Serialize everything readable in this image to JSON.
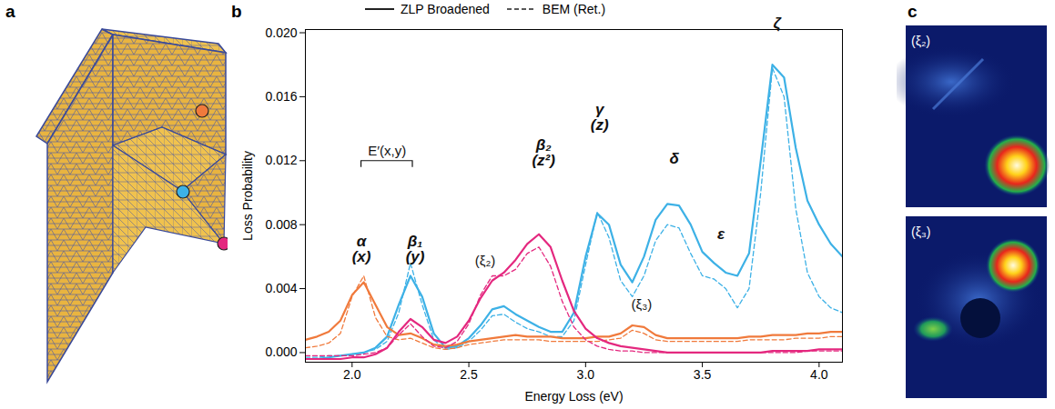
{
  "panel_labels": [
    "a",
    "b",
    "c"
  ],
  "chart_data": {
    "type": "line",
    "x_label": "Energy Loss (eV)",
    "y_label": "Loss Probability",
    "xlim": [
      1.8,
      4.1
    ],
    "ylim": [
      -0.0006,
      0.0202
    ],
    "xticks": [
      {
        "value": 2,
        "label": "2.0"
      },
      {
        "value": 2.5,
        "label": "2.5"
      },
      {
        "value": 3,
        "label": "3.0"
      },
      {
        "value": 3.5,
        "label": "3.5"
      },
      {
        "value": 4,
        "label": "4.0"
      }
    ],
    "yticks": [
      {
        "value": 0,
        "label": "0.000"
      },
      {
        "value": 0.004,
        "label": "0.004"
      },
      {
        "value": 0.008,
        "label": "0.008"
      },
      {
        "value": 0.012,
        "label": "0.012"
      },
      {
        "value": 0.016,
        "label": "0.016"
      },
      {
        "value": 0.02,
        "label": "0.020"
      }
    ],
    "grid": false,
    "legend": "top",
    "x": [
      1.8,
      1.85,
      1.9,
      1.95,
      2,
      2.05,
      2.1,
      2.15,
      2.2,
      2.25,
      2.3,
      2.35,
      2.4,
      2.45,
      2.5,
      2.55,
      2.6,
      2.65,
      2.7,
      2.75,
      2.8,
      2.85,
      2.9,
      2.95,
      3,
      3.05,
      3.1,
      3.15,
      3.2,
      3.25,
      3.3,
      3.35,
      3.4,
      3.45,
      3.5,
      3.55,
      3.6,
      3.65,
      3.7,
      3.75,
      3.8,
      3.85,
      3.9,
      3.95,
      4,
      4.05,
      4.1
    ],
    "series": [
      {
        "name": "ZLP Broadened",
        "color": "#3db1e6",
        "line_style": "solid",
        "values": [
          -0.0004,
          -0.0004,
          -0.0003,
          -0.0002,
          -0.0001,
          0,
          0.0003,
          0.001,
          0.003,
          0.0048,
          0.0035,
          0.0012,
          0.0003,
          0.0004,
          0.0009,
          0.0017,
          0.0027,
          0.0029,
          0.0024,
          0.002,
          0.0016,
          0.0013,
          0.0013,
          0.0025,
          0.006,
          0.0087,
          0.008,
          0.0055,
          0.0044,
          0.006,
          0.0083,
          0.0093,
          0.0092,
          0.008,
          0.0063,
          0.0056,
          0.005,
          0.0048,
          0.0062,
          0.012,
          0.018,
          0.0172,
          0.0128,
          0.0095,
          0.008,
          0.0068,
          0.006
        ]
      },
      {
        "name": "BEM (Ret.)",
        "color": "#3db1e6",
        "line_style": "dashed",
        "values": [
          -0.0003,
          -0.0003,
          -0.0002,
          -0.0002,
          -0.0001,
          0,
          0.0002,
          0.0007,
          0.0025,
          0.0056,
          0.003,
          0.0008,
          0.0002,
          0.0003,
          0.0007,
          0.0014,
          0.0023,
          0.0024,
          0.0019,
          0.0015,
          0.0013,
          0.001,
          0.001,
          0.002,
          0.0055,
          0.0088,
          0.0072,
          0.0045,
          0.0035,
          0.0048,
          0.007,
          0.008,
          0.0078,
          0.0062,
          0.0048,
          0.0046,
          0.004,
          0.0028,
          0.004,
          0.01,
          0.0178,
          0.016,
          0.009,
          0.005,
          0.0035,
          0.0028,
          0.0025
        ]
      },
      {
        "name": "ZLP Broadened",
        "color": "#f07a3c",
        "line_style": "solid",
        "values": [
          0.0008,
          0.001,
          0.0013,
          0.002,
          0.0036,
          0.0044,
          0.003,
          0.0016,
          0.0011,
          0.0012,
          0.0009,
          0.0005,
          0.0004,
          0.0005,
          0.0007,
          0.0008,
          0.0009,
          0.001,
          0.0011,
          0.001,
          0.001,
          0.001,
          0.0009,
          0.0009,
          0.0009,
          0.001,
          0.001,
          0.0012,
          0.0017,
          0.0016,
          0.0011,
          0.0009,
          0.0009,
          0.0009,
          0.0009,
          0.0009,
          0.0009,
          0.0009,
          0.001,
          0.001,
          0.0011,
          0.0011,
          0.0011,
          0.0012,
          0.0012,
          0.0013,
          0.0013
        ]
      },
      {
        "name": "BEM (Ret.)",
        "color": "#f07a3c",
        "line_style": "dashed",
        "values": [
          0.0003,
          0.0004,
          0.0006,
          0.0012,
          0.0035,
          0.0048,
          0.0022,
          0.001,
          0.0008,
          0.0009,
          0.0006,
          0.0003,
          0.0002,
          0.0003,
          0.0005,
          0.0006,
          0.0007,
          0.0008,
          0.0008,
          0.0008,
          0.0008,
          0.0007,
          0.0007,
          0.0007,
          0.0007,
          0.0007,
          0.0008,
          0.0009,
          0.0014,
          0.0012,
          0.0008,
          0.0007,
          0.0007,
          0.0007,
          0.0007,
          0.0007,
          0.0007,
          0.0007,
          0.0008,
          0.0008,
          0.0008,
          0.0008,
          0.0009,
          0.0009,
          0.0009,
          0.001,
          0.001
        ]
      },
      {
        "name": "ZLP Broadened",
        "color": "#e4287f",
        "line_style": "solid",
        "values": [
          -0.0004,
          -0.0004,
          -0.0004,
          -0.0004,
          -0.0003,
          -0.0003,
          -0.0001,
          0.0003,
          0.0013,
          0.0021,
          0.0016,
          0.0008,
          0.0006,
          0.001,
          0.002,
          0.0034,
          0.0045,
          0.005,
          0.0058,
          0.0068,
          0.0074,
          0.0066,
          0.0045,
          0.0026,
          0.0015,
          0.0009,
          0.0006,
          0.0004,
          0.0003,
          0.0002,
          0.0001,
          0,
          0,
          0,
          0,
          0,
          0,
          0,
          0,
          0,
          0.0001,
          0.0001,
          0.0001,
          0.0001,
          0.0002,
          0.0002,
          0.0002
        ]
      },
      {
        "name": "BEM (Ret.)",
        "color": "#e4287f",
        "line_style": "dashed",
        "values": [
          -0.0002,
          -0.0002,
          -0.0002,
          -0.0002,
          -0.0002,
          -0.0001,
          0,
          0.0003,
          0.0011,
          0.0018,
          0.001,
          0.0004,
          0.0003,
          0.0007,
          0.0018,
          0.0036,
          0.0048,
          0.0048,
          0.0052,
          0.0062,
          0.0066,
          0.0054,
          0.0032,
          0.0016,
          0.0008,
          0.0004,
          0.0002,
          0.0001,
          0.0001,
          0,
          0,
          0,
          0,
          0,
          0,
          0,
          0,
          0,
          0,
          0,
          0,
          0,
          0,
          0.0001,
          0.0001,
          0.0001,
          0.0001
        ]
      }
    ],
    "mode_labels": [
      {
        "lines": [
          "α",
          "(x)"
        ],
        "x": 2.04,
        "y": 0.0057
      },
      {
        "lines": [
          "β₁",
          "(y)"
        ],
        "x": 2.27,
        "y": 0.0057
      },
      {
        "lines": [
          "β₂",
          "(z²)"
        ],
        "x": 2.82,
        "y": 0.0117
      },
      {
        "lines": [
          "γ",
          "(z)"
        ],
        "x": 3.06,
        "y": 0.0139
      },
      {
        "lines": [
          "δ"
        ],
        "x": 3.38,
        "y": 0.0118
      },
      {
        "lines": [
          "ε"
        ],
        "x": 3.58,
        "y": 0.0071
      },
      {
        "lines": [
          "ζ"
        ],
        "x": 3.82,
        "y": 0.0203
      }
    ],
    "feature_labels": [
      {
        "text": "E′(x,y)",
        "x": 2.15,
        "y": 0.0126,
        "bracket": [
          2.04,
          2.26
        ]
      },
      {
        "text": "(ξ₂)",
        "x": 2.57,
        "y": 0.0057
      },
      {
        "text": "(ξ₃)",
        "x": 3.24,
        "y": 0.003
      }
    ]
  },
  "images": [
    {
      "label": "(ξ₂)"
    },
    {
      "label": "(ξ₃)"
    }
  ]
}
